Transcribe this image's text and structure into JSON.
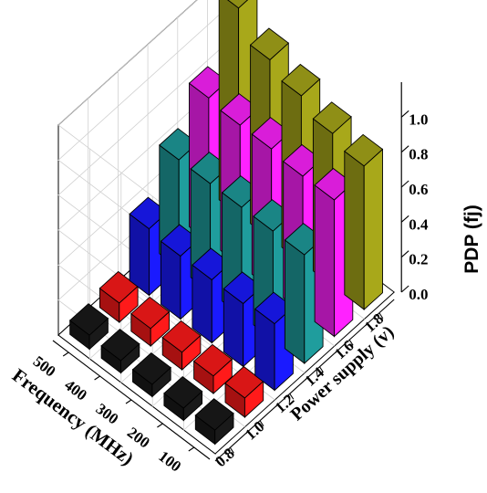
{
  "chart_data": {
    "type": "bar3d",
    "xlabel": "Power supply (v)",
    "ylabel": "Frequency (MHz)",
    "zlabel": "PDP (fj)",
    "x_categories": [
      "0.8",
      "1.0",
      "1.2",
      "1.4",
      "1.6",
      "1.8"
    ],
    "y_categories": [
      "100",
      "200",
      "300",
      "400",
      "500"
    ],
    "z_ticks": [
      "0.0",
      "0.2",
      "0.4",
      "0.6",
      "0.8",
      "1.0"
    ],
    "zlim": [
      0,
      1.2
    ],
    "grid": true,
    "colors": [
      "#1a1a1a",
      "#ff1a1a",
      "#1a1aff",
      "#1f9d9d",
      "#ff22ff",
      "#a8a81a"
    ],
    "values": [
      [
        0.08,
        0.07,
        0.07,
        0.07,
        0.08
      ],
      [
        0.11,
        0.1,
        0.1,
        0.1,
        0.11
      ],
      [
        0.38,
        0.36,
        0.36,
        0.36,
        0.38
      ],
      [
        0.62,
        0.62,
        0.62,
        0.62,
        0.62
      ],
      [
        0.78,
        0.78,
        0.8,
        0.8,
        0.82
      ],
      [
        0.82,
        0.87,
        0.95,
        1.02,
        1.18
      ]
    ]
  }
}
